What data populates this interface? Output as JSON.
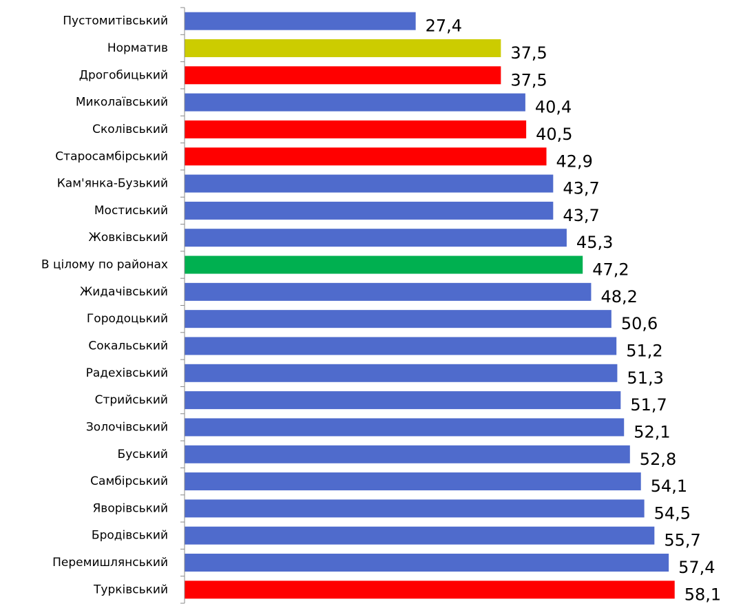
{
  "chart_data": {
    "type": "barh",
    "categories": [
      "Пустомитівський",
      "Норматив",
      "Дрогобицький",
      "Миколаївський",
      "Сколівський",
      "Старосамбірський",
      "Кам'янка-Бузький",
      "Мостиський",
      "Жовківський",
      "В цілому по районах",
      "Жидачівський",
      "Городоцький",
      "Сокальський",
      "Радехівський",
      "Стрийський",
      "Золочівський",
      "Буський",
      "Самбірський",
      "Яворівський",
      "Бродівський",
      "Перемишлянський",
      "Турківський"
    ],
    "values": [
      27.4,
      37.5,
      37.5,
      40.4,
      40.5,
      42.9,
      43.7,
      43.7,
      45.3,
      47.2,
      48.2,
      50.6,
      51.2,
      51.3,
      51.7,
      52.1,
      52.8,
      54.1,
      54.5,
      55.7,
      57.4,
      58.1
    ],
    "value_labels": [
      "27,4",
      "37,5",
      "37,5",
      "40,4",
      "40,5",
      "42,9",
      "43,7",
      "43,7",
      "45,3",
      "47,2",
      "48,2",
      "50,6",
      "51,2",
      "51,3",
      "51,7",
      "52,1",
      "52,8",
      "54,1",
      "54,5",
      "55,7",
      "57,4",
      "58,1"
    ],
    "colors": [
      "#4f6bcc",
      "#cccc00",
      "#ff0000",
      "#4f6bcc",
      "#ff0000",
      "#ff0000",
      "#4f6bcc",
      "#4f6bcc",
      "#4f6bcc",
      "#00b050",
      "#4f6bcc",
      "#4f6bcc",
      "#4f6bcc",
      "#4f6bcc",
      "#4f6bcc",
      "#4f6bcc",
      "#4f6bcc",
      "#4f6bcc",
      "#4f6bcc",
      "#4f6bcc",
      "#4f6bcc",
      "#ff0000"
    ],
    "xlim": [
      0,
      64
    ]
  }
}
